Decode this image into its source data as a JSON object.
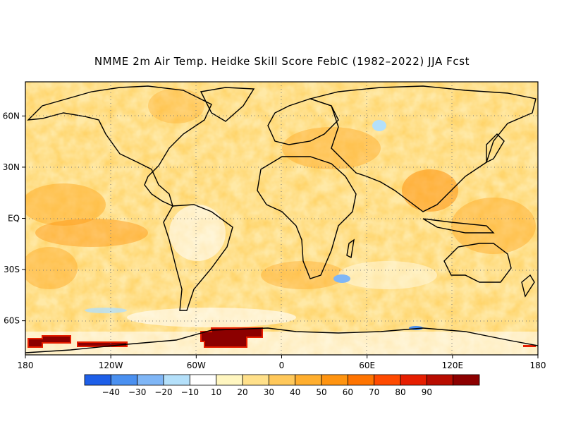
{
  "title": "NMME 2m Air Temp. Heidke Skill Score FebIC (1982–2022) JJA Fcst",
  "map": {
    "projection": "latitude-longitude",
    "lon_range": [
      -180,
      180
    ],
    "lat_range": [
      -80,
      80
    ],
    "grid": true,
    "x_ticks": [
      {
        "lon": -180,
        "label": "180"
      },
      {
        "lon": -120,
        "label": "120W"
      },
      {
        "lon": -60,
        "label": "60W"
      },
      {
        "lon": 0,
        "label": "0"
      },
      {
        "lon": 60,
        "label": "60E"
      },
      {
        "lon": 120,
        "label": "120E"
      },
      {
        "lon": 180,
        "label": "180"
      }
    ],
    "y_ticks": [
      {
        "lat": 60,
        "label": "60N"
      },
      {
        "lat": 30,
        "label": "30N"
      },
      {
        "lat": 0,
        "label": "EQ"
      },
      {
        "lat": -30,
        "label": "30S"
      },
      {
        "lat": -60,
        "label": "60S"
      }
    ]
  },
  "colorbar": {
    "colors": [
      "#1e5fe8",
      "#4a90f0",
      "#7fb6f6",
      "#b4e0fa",
      "#ffffff",
      "#fff6c0",
      "#ffe08a",
      "#ffc85a",
      "#ffae2e",
      "#ff9410",
      "#ff7400",
      "#ff4a00",
      "#e61e00",
      "#b80c00",
      "#8c0000"
    ],
    "labels": [
      "-40",
      "-30",
      "-20",
      "-10",
      "10",
      "20",
      "30",
      "40",
      "50",
      "60",
      "70",
      "80",
      "90"
    ]
  },
  "fields": {
    "dominant_range": "20-50",
    "notable_high_skill": [
      {
        "region": "Antarctic coast near 150W",
        "value_class": "90+"
      },
      {
        "region": "Antarctic coast near 40W",
        "value_class": "90+"
      }
    ],
    "notable_negative": [
      {
        "region": "South Indian Ocean near 40S 40E",
        "value_class": "-10 to -30"
      },
      {
        "region": "Northern Russia near 60N 80E",
        "value_class": "-10 to -20"
      }
    ]
  }
}
